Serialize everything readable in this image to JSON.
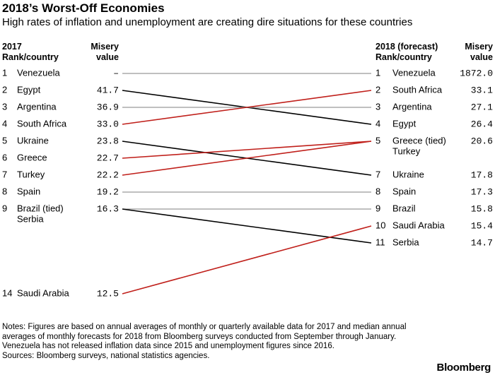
{
  "title": "2018’s Worst-Off Economies",
  "subtitle": "High rates of inflation and unemployment are creating dire situations for these countries",
  "headers": {
    "left_rank": "2017\nRank/country",
    "left_value": "Misery\nvalue",
    "right_rank": "2018 (forecast)\nRank/country",
    "right_value": "Misery\nvalue"
  },
  "chart_data": {
    "type": "slope",
    "colors": {
      "worse": "#c0201b",
      "better": "#000000",
      "same": "#999999"
    },
    "left": [
      {
        "rank": "1",
        "country": "Venezuela",
        "value": "–"
      },
      {
        "rank": "2",
        "country": "Egypt",
        "value": "41.7"
      },
      {
        "rank": "3",
        "country": "Argentina",
        "value": "36.9"
      },
      {
        "rank": "4",
        "country": "South Africa",
        "value": "33.0"
      },
      {
        "rank": "5",
        "country": "Ukraine",
        "value": "23.8"
      },
      {
        "rank": "6",
        "country": "Greece",
        "value": "22.7"
      },
      {
        "rank": "7",
        "country": "Turkey",
        "value": "22.2"
      },
      {
        "rank": "8",
        "country": "Spain",
        "value": "19.2"
      },
      {
        "rank": "9",
        "country": "Brazil (tied)",
        "value": "16.3",
        "country2": "Serbia"
      },
      {
        "rank": "14",
        "country": "Saudi Arabia",
        "value": "12.5"
      }
    ],
    "right": [
      {
        "rank": "1",
        "country": "Venezuela",
        "value": "1872.0"
      },
      {
        "rank": "2",
        "country": "South Africa",
        "value": "33.1"
      },
      {
        "rank": "3",
        "country": "Argentina",
        "value": "27.1"
      },
      {
        "rank": "4",
        "country": "Egypt",
        "value": "26.4"
      },
      {
        "rank": "5",
        "country": "Greece (tied)",
        "value": "20.6",
        "country2": "Turkey"
      },
      {
        "rank": "7",
        "country": "Ukraine",
        "value": "17.8"
      },
      {
        "rank": "8",
        "country": "Spain",
        "value": "17.3"
      },
      {
        "rank": "9",
        "country": "Brazil",
        "value": "15.8"
      },
      {
        "rank": "10",
        "country": "Saudi Arabia",
        "value": "15.4"
      },
      {
        "rank": "11",
        "country": "Serbia",
        "value": "14.7"
      }
    ],
    "links": [
      {
        "from": 0,
        "to": 0,
        "color": "same"
      },
      {
        "from": 1,
        "to": 3,
        "color": "better"
      },
      {
        "from": 2,
        "to": 2,
        "color": "same"
      },
      {
        "from": 3,
        "to": 1,
        "color": "worse"
      },
      {
        "from": 4,
        "to": 5,
        "color": "better"
      },
      {
        "from": 5,
        "to": 4,
        "color": "worse"
      },
      {
        "from": 6,
        "to": 4,
        "color": "worse"
      },
      {
        "from": 7,
        "to": 6,
        "color": "same"
      },
      {
        "from": 8,
        "to": 7,
        "color": "same"
      },
      {
        "from": 8,
        "to": 9,
        "color": "better"
      },
      {
        "from": 9,
        "to": 8,
        "color": "worse"
      }
    ]
  },
  "notes": [
    "Notes: Figures are based on annual averages of monthly or quarterly available data for 2017 and median annual averages of monthly forecasts for 2018 from Bloomberg surveys conducted from September through January. Venezuela has not released inflation data since 2015 and unemployment figures since 2016.",
    "Sources: Bloomberg surveys, national statistics agencies."
  ],
  "brand": "Bloomberg"
}
